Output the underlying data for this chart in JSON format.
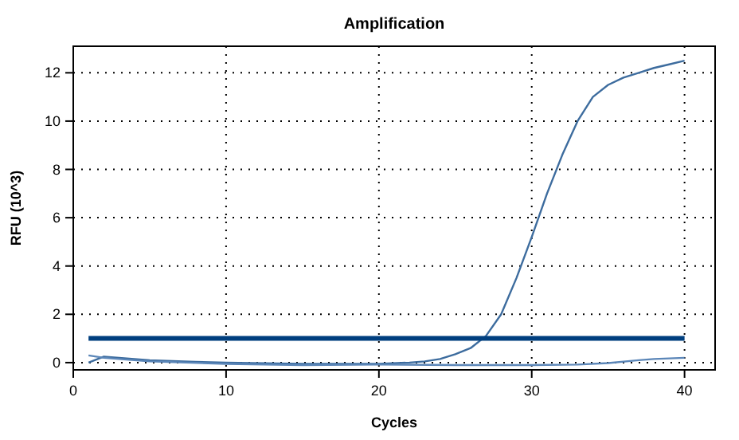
{
  "chart_data": {
    "type": "line",
    "title": "Amplification",
    "xlabel": "Cycles",
    "ylabel": "RFU (10^3)",
    "xlim": [
      0,
      42
    ],
    "ylim": [
      -0.3,
      13.1
    ],
    "xticks": [
      0,
      10,
      20,
      30,
      40
    ],
    "yticks": [
      0,
      2,
      4,
      6,
      8,
      10,
      12
    ],
    "grid": true,
    "line_style": "solid",
    "series": [
      {
        "color": "#3d6c9e",
        "x": [
          1,
          2,
          3,
          5,
          8,
          10,
          15,
          20,
          22,
          23,
          24,
          25,
          26,
          27,
          28,
          29,
          30,
          31,
          32,
          33,
          34,
          35,
          36,
          37,
          38,
          39,
          40
        ],
        "values": [
          0,
          0.25,
          0.2,
          0.1,
          0.03,
          0,
          -0.05,
          -0.05,
          0,
          0.05,
          0.15,
          0.35,
          0.6,
          1.1,
          2,
          3.5,
          5.2,
          7,
          8.6,
          10,
          11,
          11.5,
          11.8,
          12,
          12.2,
          12.35,
          12.5
        ]
      },
      {
        "color": "#5b86b8",
        "x": [
          1,
          2,
          5,
          10,
          15,
          20,
          25,
          30,
          33,
          35,
          37,
          38,
          40
        ],
        "values": [
          0.3,
          0.2,
          0.05,
          -0.05,
          -0.1,
          -0.08,
          -0.1,
          -0.1,
          -0.08,
          -0.02,
          0.1,
          0.15,
          0.2
        ]
      },
      {
        "color": "#003f7f",
        "x": [
          1,
          40
        ],
        "values": [
          1,
          1
        ]
      }
    ]
  }
}
